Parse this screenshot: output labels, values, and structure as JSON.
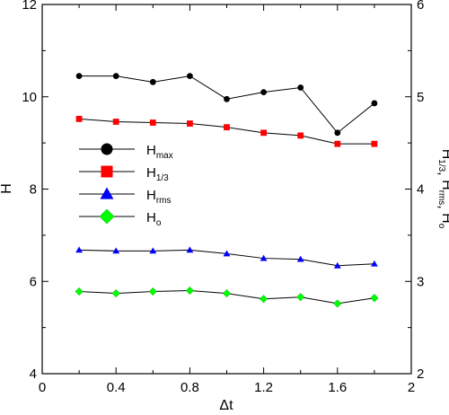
{
  "chart_data": {
    "type": "line",
    "x": [
      0.2,
      0.4,
      0.6,
      0.8,
      1.0,
      1.2,
      1.4,
      1.6,
      1.8
    ],
    "xlabel": "Δt",
    "ylabel_left": "H",
    "ylabel_right": {
      "parts": [
        [
          "H",
          "1/3"
        ],
        [
          "H",
          "rms"
        ],
        [
          "H",
          "o"
        ]
      ],
      "separator": ", "
    },
    "xlim": [
      0,
      2
    ],
    "ylim_left": [
      4,
      12
    ],
    "ylim_right": [
      2,
      6
    ],
    "xticks": [
      "0",
      "0.4",
      "0.8",
      "1.2",
      "1.6",
      "2"
    ],
    "yticks_left": [
      "4",
      "6",
      "8",
      "10",
      "12"
    ],
    "yticks_right": [
      "2",
      "3",
      "4",
      "5",
      "6"
    ],
    "grid": false,
    "legend_placement": "center-left",
    "series": [
      {
        "base": "H",
        "sub": "max",
        "axis": "left",
        "marker": "circle",
        "color": "#000000",
        "values": [
          10.45,
          10.45,
          10.32,
          10.45,
          9.95,
          10.1,
          10.2,
          9.22,
          9.86
        ]
      },
      {
        "base": "H",
        "sub": "1/3",
        "axis": "right",
        "marker": "square",
        "color": "#ff0000",
        "values": [
          4.76,
          4.73,
          4.72,
          4.71,
          4.67,
          4.61,
          4.58,
          4.49,
          4.49
        ]
      },
      {
        "base": "H",
        "sub": "rms",
        "axis": "right",
        "marker": "triangle",
        "color": "#0000ff",
        "values": [
          3.34,
          3.33,
          3.33,
          3.34,
          3.3,
          3.25,
          3.24,
          3.17,
          3.19
        ]
      },
      {
        "base": "H",
        "sub": "o",
        "axis": "right",
        "marker": "diamond",
        "color": "#00ff00",
        "values": [
          2.89,
          2.87,
          2.89,
          2.9,
          2.87,
          2.81,
          2.83,
          2.76,
          2.82
        ]
      }
    ]
  }
}
